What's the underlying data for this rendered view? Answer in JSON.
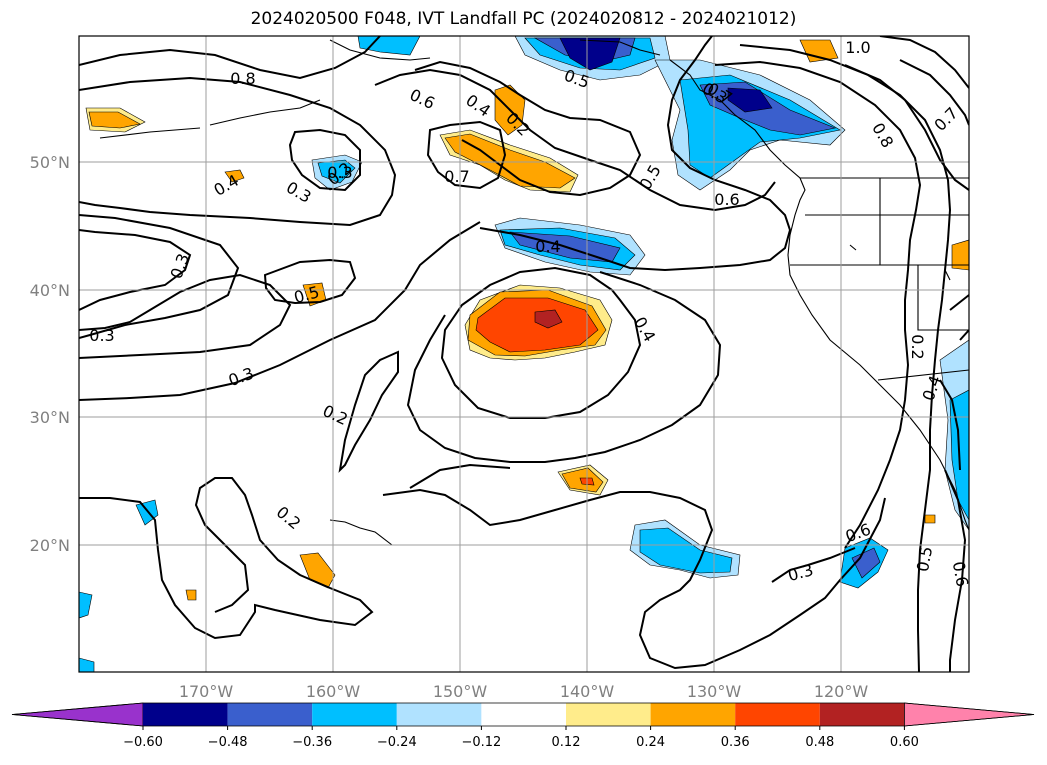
{
  "title": "2024020500 F048, IVT Landfall PC (2024020812 - 2024021012)",
  "map": {
    "lon_labels": [
      "170°W",
      "160°W",
      "150°W",
      "140°W",
      "130°W",
      "120°W"
    ],
    "lat_labels": [
      "50°N",
      "40°N",
      "30°N",
      "20°N"
    ],
    "contour_labels": [
      "1.0",
      "0.8",
      "0.7",
      "0.6",
      "0.5",
      "0.4",
      "0.3",
      "0.2",
      "0.7",
      "0.6",
      "0.5",
      "0.4",
      "0.3",
      "0.2",
      "0.4",
      "0.3",
      "0.5",
      "0.3",
      "0.2",
      "0.3",
      "0.2",
      "0.4",
      "0.3",
      "0.6",
      "0.8",
      "0.7",
      "0.3",
      "0.2",
      "0.4",
      "0.5",
      "0.6"
    ]
  },
  "colorbar": {
    "colors": [
      "#9932CC",
      "#00008B",
      "#3A5FCD",
      "#00BFFF",
      "#B0E2FF",
      "#FFFFFF",
      "#FFEC8B",
      "#FFA500",
      "#FF4500",
      "#B22222",
      "#FF82AB"
    ],
    "labels": [
      "−0.60",
      "−0.48",
      "−0.36",
      "−0.24",
      "−0.12",
      "0.12",
      "0.24",
      "0.36",
      "0.48",
      "0.60"
    ]
  }
}
